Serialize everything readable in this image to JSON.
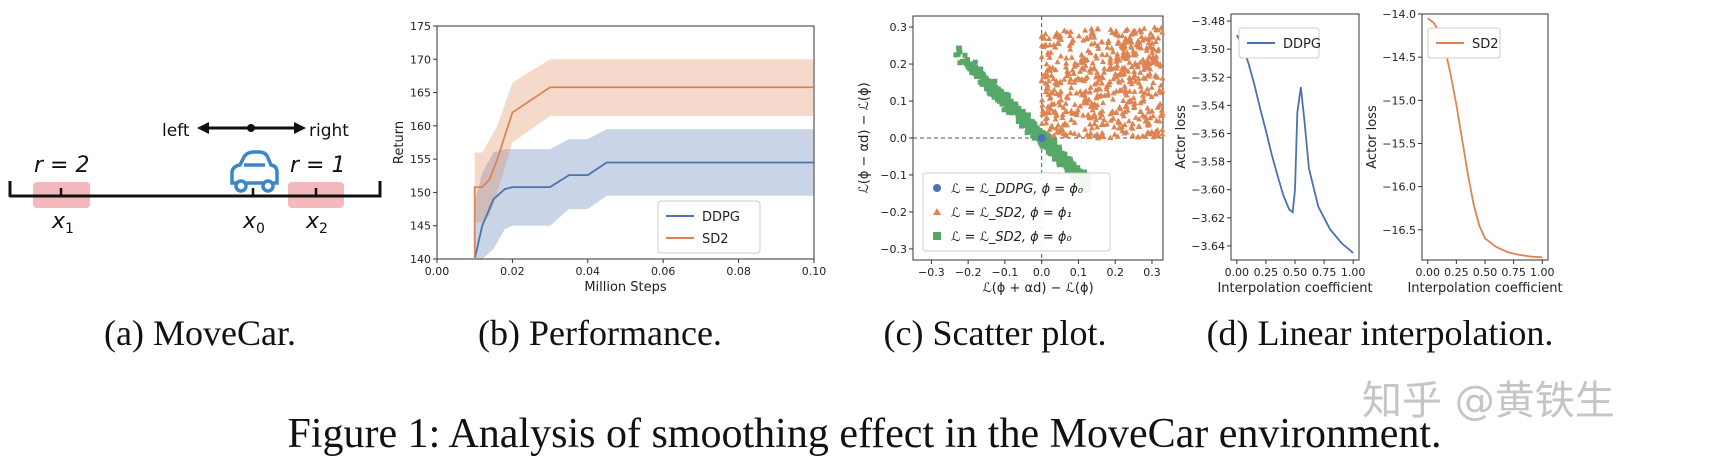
{
  "captions": {
    "a": "(a) MoveCar.",
    "b": "(b) Performance.",
    "c": "(c) Scatter plot.",
    "d": "(d) Linear interpolation."
  },
  "figure_caption": "Figure 1: Analysis of smoothing effect in the MoveCar environment.",
  "watermark": "知乎 @黄铁生",
  "movecar": {
    "left_label": "left",
    "right_label": "right",
    "r_left": "r = 2",
    "r_right": "r = 1",
    "x1": "x",
    "x1_sub": "1",
    "x0": "x",
    "x0_sub": "0",
    "x2": "x",
    "x2_sub": "2",
    "colors": {
      "reward_zone": "#f3b9bd",
      "car": "#3a86c8",
      "track": "#111111"
    }
  },
  "chart_data": [
    {
      "type": "line",
      "panel": "b",
      "xlabel": "Million Steps",
      "ylabel": "Return",
      "xlim": [
        0.0,
        0.1
      ],
      "ylim": [
        140,
        175
      ],
      "xticks": [
        0.0,
        0.02,
        0.04,
        0.06,
        0.08,
        0.1
      ],
      "xtick_labels": [
        "0.00",
        "0.02",
        "0.04",
        "0.06",
        "0.08",
        "0.10"
      ],
      "yticks": [
        140,
        145,
        150,
        155,
        160,
        165,
        170,
        175
      ],
      "legend_position": "lower-right",
      "grid": false,
      "series": [
        {
          "name": "DDPG",
          "color": "#4c72b0",
          "x": [
            0.01,
            0.012,
            0.015,
            0.018,
            0.02,
            0.03,
            0.035,
            0.04,
            0.045,
            0.1
          ],
          "y": [
            140.0,
            145.0,
            149.0,
            150.5,
            150.8,
            150.8,
            152.6,
            152.6,
            154.5,
            154.5
          ],
          "upper": [
            148.5,
            153.0,
            156.0,
            156.5,
            156.5,
            156.5,
            158.0,
            158.0,
            159.5,
            159.5
          ],
          "lower": [
            140.0,
            140.0,
            141.5,
            144.5,
            145.0,
            145.0,
            147.5,
            147.5,
            149.5,
            149.5
          ]
        },
        {
          "name": "SD2",
          "color": "#dd8452",
          "x": [
            0.01,
            0.01,
            0.012,
            0.014,
            0.016,
            0.02,
            0.03,
            0.04,
            0.1
          ],
          "y": [
            140.0,
            150.8,
            150.8,
            152.0,
            155.0,
            162.0,
            165.8,
            165.8,
            165.8
          ],
          "upper": [
            156.0,
            156.0,
            156.0,
            158.0,
            160.0,
            166.5,
            170.0,
            170.0,
            170.0
          ],
          "lower": [
            140.0,
            145.5,
            145.5,
            146.5,
            150.0,
            157.5,
            161.5,
            161.5,
            161.5
          ]
        }
      ]
    },
    {
      "type": "scatter",
      "panel": "c",
      "xlabel": "ℒ(ϕ + αd) − ℒ(ϕ)",
      "ylabel": "ℒ(ϕ − αd) − ℒ(ϕ)",
      "xlim": [
        -0.35,
        0.33
      ],
      "ylim": [
        -0.33,
        0.33
      ],
      "xticks": [
        -0.3,
        -0.2,
        -0.1,
        0.0,
        0.1,
        0.2,
        0.3
      ],
      "xtick_labels": [
        "−0.3",
        "−0.2",
        "−0.1",
        "0.0",
        "0.1",
        "0.2",
        "0.3"
      ],
      "yticks": [
        -0.3,
        -0.2,
        -0.1,
        0.0,
        0.1,
        0.2,
        0.3
      ],
      "ytick_labels": [
        "−0.3",
        "−0.2",
        "−0.1",
        "0.0",
        "0.1",
        "0.2",
        "0.3"
      ],
      "legend_position": "lower-left",
      "series": [
        {
          "legend": "ℒ = ℒ_DDPG, ϕ = ϕ₀",
          "marker": "circle",
          "color": "#4c72b0",
          "points": [
            [
              0.0,
              0.0
            ]
          ]
        },
        {
          "legend": "ℒ = ℒ_SD2, ϕ = ϕ₁",
          "marker": "triangle",
          "color": "#dd8452",
          "cloud": {
            "x_range": [
              0.0,
              0.33
            ],
            "y_range": [
              0.0,
              0.3
            ],
            "count": 600
          }
        },
        {
          "legend": "ℒ = ℒ_SD2, ϕ = ϕ₀",
          "marker": "square",
          "color": "#55a868",
          "cloud": {
            "x_range": [
              -0.24,
              0.13
            ],
            "slope": -1.0,
            "spread": 0.03,
            "count": 700
          }
        }
      ]
    },
    {
      "type": "line",
      "panel": "d1",
      "xlabel": "Interpolation coefficient",
      "ylabel": "Actor loss",
      "xlim": [
        -0.05,
        1.05
      ],
      "ylim": [
        -3.65,
        -3.475
      ],
      "xticks": [
        0.0,
        0.25,
        0.5,
        0.75,
        1.0
      ],
      "xtick_labels": [
        "0.00",
        "0.25",
        "0.50",
        "0.75",
        "1.00"
      ],
      "yticks": [
        -3.48,
        -3.5,
        -3.52,
        -3.54,
        -3.56,
        -3.58,
        -3.6,
        -3.62,
        -3.64
      ],
      "ytick_labels": [
        "−3.48",
        "−3.50",
        "−3.52",
        "−3.54",
        "−3.56",
        "−3.58",
        "−3.60",
        "−3.62",
        "−3.64"
      ],
      "legend_position": "top-left",
      "series": [
        {
          "name": "DDPG",
          "color": "#4c72b0",
          "x": [
            0.0,
            0.05,
            0.1,
            0.15,
            0.2,
            0.25,
            0.3,
            0.35,
            0.4,
            0.45,
            0.48,
            0.5,
            0.52,
            0.55,
            0.58,
            0.62,
            0.7,
            0.8,
            0.9,
            1.0
          ],
          "y": [
            -3.49,
            -3.498,
            -3.51,
            -3.525,
            -3.542,
            -3.558,
            -3.575,
            -3.59,
            -3.604,
            -3.614,
            -3.616,
            -3.6,
            -3.545,
            -3.527,
            -3.55,
            -3.585,
            -3.612,
            -3.628,
            -3.638,
            -3.645
          ]
        }
      ]
    },
    {
      "type": "line",
      "panel": "d2",
      "xlabel": "Interpolation coefficient",
      "ylabel": "Actor loss",
      "xlim": [
        -0.05,
        1.05
      ],
      "ylim": [
        -16.85,
        -14.0
      ],
      "xticks": [
        0.0,
        0.25,
        0.5,
        0.75,
        1.0
      ],
      "xtick_labels": [
        "0.00",
        "0.25",
        "0.50",
        "0.75",
        "1.00"
      ],
      "yticks": [
        -14.0,
        -14.5,
        -15.0,
        -15.5,
        -16.0,
        -16.5
      ],
      "ytick_labels": [
        "−14.0",
        "−14.5",
        "−15.0",
        "−15.5",
        "−16.0",
        "−16.5"
      ],
      "legend_position": "top-left",
      "series": [
        {
          "name": "SD2",
          "color": "#dd8452",
          "x": [
            0.0,
            0.05,
            0.1,
            0.15,
            0.2,
            0.25,
            0.3,
            0.35,
            0.4,
            0.45,
            0.5,
            0.55,
            0.6,
            0.7,
            0.8,
            0.9,
            1.0
          ],
          "y": [
            -14.05,
            -14.1,
            -14.2,
            -14.4,
            -14.7,
            -15.05,
            -15.45,
            -15.85,
            -16.2,
            -16.45,
            -16.6,
            -16.65,
            -16.7,
            -16.76,
            -16.79,
            -16.81,
            -16.82
          ]
        }
      ]
    }
  ]
}
